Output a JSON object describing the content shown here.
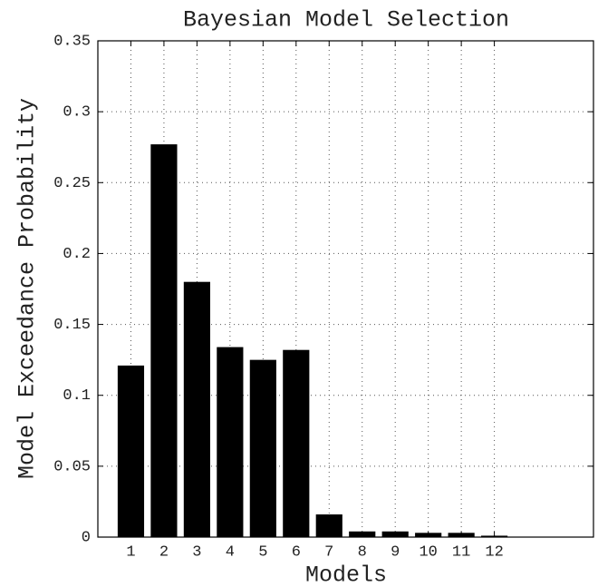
{
  "chart_data": {
    "type": "bar",
    "title": "Bayesian Model Selection",
    "xlabel": "Models",
    "ylabel": "Model Exceedance Probability",
    "categories": [
      "1",
      "2",
      "3",
      "4",
      "5",
      "6",
      "7",
      "8",
      "9",
      "10",
      "11",
      "12"
    ],
    "x": [
      1,
      2,
      3,
      4,
      5,
      6,
      7,
      8,
      9,
      10,
      11,
      12
    ],
    "values": [
      0.121,
      0.277,
      0.18,
      0.134,
      0.125,
      0.132,
      0.016,
      0.004,
      0.004,
      0.003,
      0.003,
      0.001
    ],
    "color": "#000000",
    "xlim": [
      0,
      15
    ],
    "xticks": [
      1,
      2,
      3,
      4,
      5,
      6,
      7,
      8,
      9,
      10,
      11,
      12
    ],
    "ylim": [
      0,
      0.35
    ],
    "yticks": [
      0,
      0.05,
      0.1,
      0.15,
      0.2,
      0.25,
      0.3,
      0.35
    ],
    "grid": true
  }
}
